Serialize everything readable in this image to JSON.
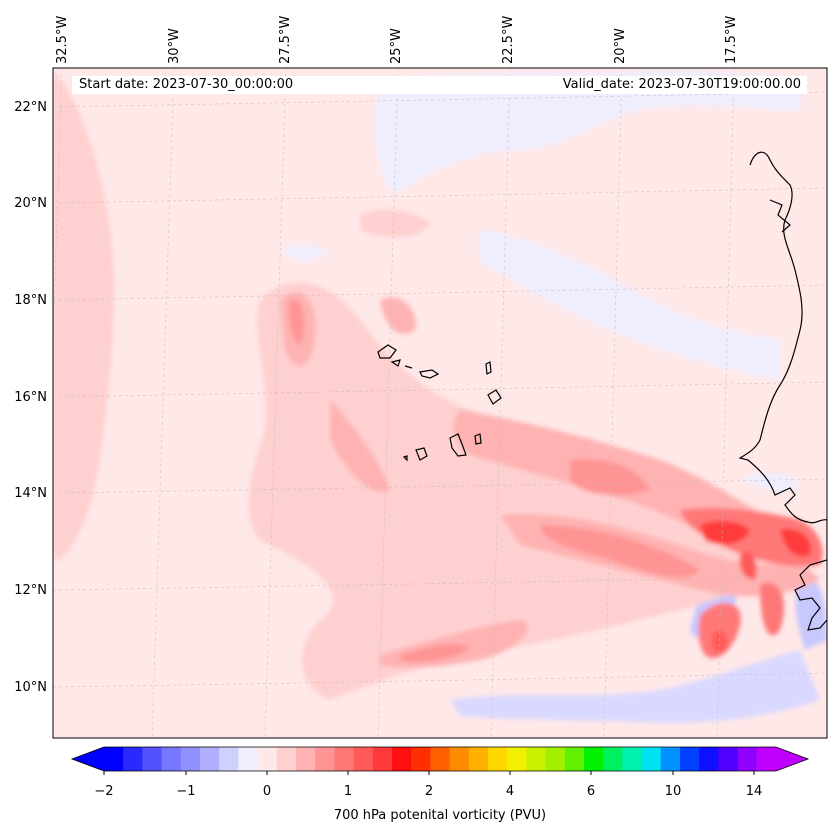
{
  "map": {
    "start_date_text": "Start date: 2023-07-30_00:00:00",
    "valid_date_text": "Valid_date: 2023-07-30T19:00:00.00",
    "lon_labels": [
      "32.5°W",
      "30°W",
      "27.5°W",
      "25°W",
      "22.5°W",
      "20°W",
      "17.5°W"
    ],
    "lat_labels": [
      "22°N",
      "20°N",
      "18°N",
      "16°N",
      "14°N",
      "12°N",
      "10°N"
    ],
    "lon_extent_deg": [
      -33,
      -15.7
    ],
    "lat_extent_deg": [
      8.9,
      22.8
    ]
  },
  "colorbar": {
    "label": "700 hPa potenital vorticity (PVU)",
    "tick_labels": [
      "−2",
      "−1",
      "0",
      "1",
      "2",
      "4",
      "6",
      "10",
      "14"
    ],
    "extend": "both",
    "colors": [
      "#0000ff",
      "#2a2aff",
      "#5252ff",
      "#7777ff",
      "#9090ff",
      "#b0b0ff",
      "#d0d0ff",
      "#eeeeff",
      "#ffe8e8",
      "#ffd0d0",
      "#ffb2b2",
      "#ff9494",
      "#ff7878",
      "#ff5a5a",
      "#ff3a3a",
      "#ff1010",
      "#ff3000",
      "#ff6000",
      "#ff8c00",
      "#ffb000",
      "#ffd800",
      "#f0f000",
      "#c8f000",
      "#a0f000",
      "#60f000",
      "#00f000",
      "#00f060",
      "#00f0b0",
      "#00e0f0",
      "#0090ff",
      "#0040ff",
      "#1010ff",
      "#5000ff",
      "#9000ff",
      "#c000ff"
    ]
  },
  "colors": {
    "background_pv": "#ffe8e8",
    "light_negative": "#eeeeff",
    "coast": "#000000"
  }
}
